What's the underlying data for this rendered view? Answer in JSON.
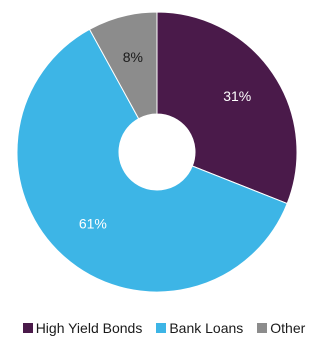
{
  "chart_data": {
    "type": "pie",
    "donut": true,
    "categories": [
      "High Yield Bonds",
      "Bank Loans",
      "Other"
    ],
    "values": [
      31,
      61,
      8
    ],
    "data_labels": [
      "31%",
      "61%",
      "8%"
    ],
    "colors": [
      "#4a1a4a",
      "#3db5e6",
      "#8c8c8c"
    ],
    "label_colors": [
      "#ffffff",
      "#ffffff",
      "#1a1a1a"
    ],
    "title": "",
    "legend_position": "bottom"
  }
}
